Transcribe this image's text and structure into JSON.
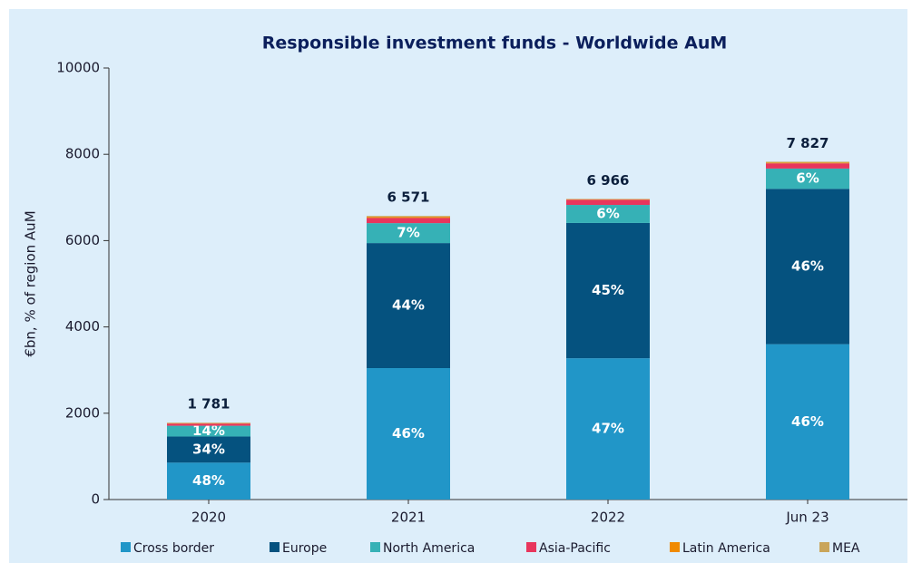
{
  "chart_data": {
    "type": "stacked_bar",
    "title": "Responsible investment funds - Worldwide AuM",
    "y_label": "€bn, % of region AuM",
    "categories": [
      "2020",
      "2021",
      "2022",
      "Jun 23"
    ],
    "series": [
      {
        "name": "Cross border",
        "color": "#2196c8",
        "values": [
          855,
          3046,
          3274,
          3600
        ],
        "value_labels": [
          "48%",
          "46%",
          "47%",
          "46%"
        ]
      },
      {
        "name": "Europe",
        "color": "#05527f",
        "values": [
          606,
          2897,
          3135,
          3600
        ],
        "value_labels": [
          "34%",
          "44%",
          "45%",
          "46%"
        ]
      },
      {
        "name": "North America",
        "color": "#36b1b6",
        "values": [
          249,
          462,
          418,
          470
        ],
        "value_labels": [
          "14%",
          "7%",
          "6%",
          "6%"
        ]
      },
      {
        "name": "Asia-Pacific",
        "color": "#e8365d",
        "values": [
          50,
          120,
          120,
          120
        ]
      },
      {
        "name": "Latin America",
        "color": "#f08a00",
        "values": [
          10,
          26,
          10,
          17
        ]
      },
      {
        "name": "MEA",
        "color": "#c9a55a",
        "values": [
          11,
          20,
          10,
          20
        ]
      }
    ],
    "totals": [
      1781,
      6571,
      6966,
      7827
    ],
    "total_labels": [
      "1 781",
      "6 571",
      "6 966",
      "7 827"
    ],
    "ylim": [
      0,
      10000
    ],
    "yticks": [
      0,
      2000,
      4000,
      6000,
      8000,
      10000
    ]
  }
}
